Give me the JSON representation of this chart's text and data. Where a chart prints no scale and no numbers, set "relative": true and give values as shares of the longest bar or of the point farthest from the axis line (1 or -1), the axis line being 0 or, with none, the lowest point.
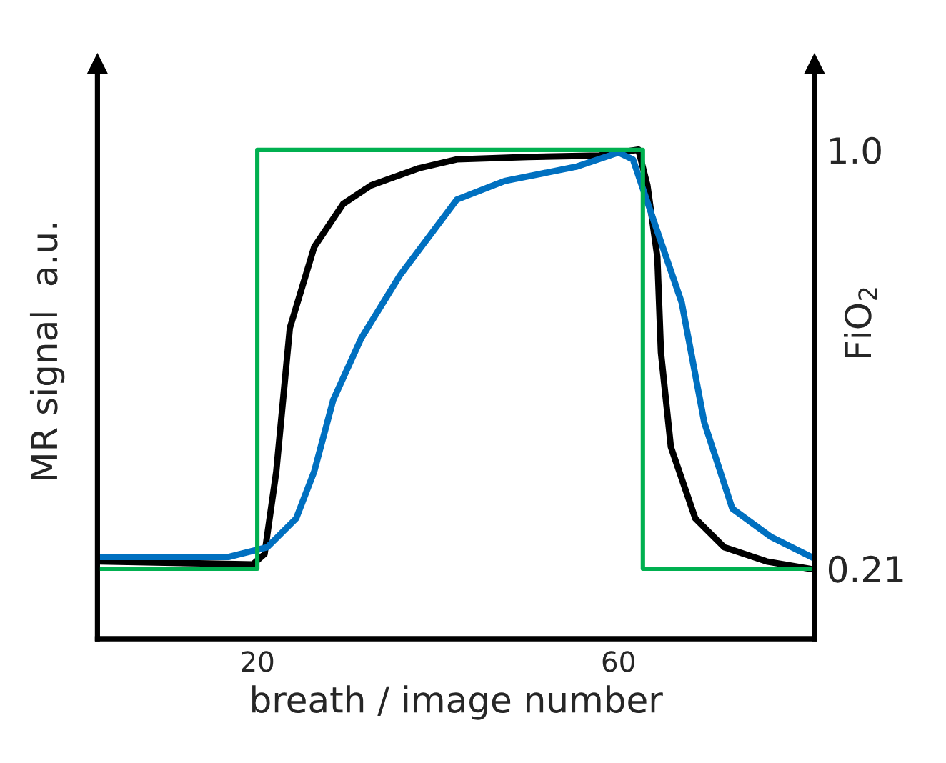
{
  "chart_data": {
    "type": "line",
    "xlabel": "breath / image number",
    "ylabel": "MR signal  a.u.",
    "y2label": "FiO$_{2}$",
    "relative": true,
    "xlim": [
      2.3,
      81.7
    ],
    "xticks": [
      20,
      60
    ],
    "y2lim": [
      0.078,
      1.162
    ],
    "y2ticks": [
      {
        "value": 1.0,
        "label": "1.0"
      },
      0.21
    ],
    "series": [
      {
        "color": "#00b050",
        "axis": "y2",
        "x": [
          2.3,
          20,
          20,
          62.7,
          62.7,
          81.7
        ],
        "values": [
          0.21,
          0.21,
          1.0,
          1.0,
          0.21,
          0.21
        ]
      },
      {
        "color": "#000000",
        "x": [
          2.6,
          19.5,
          20.8,
          22.1,
          23.6,
          26.3,
          29.5,
          32.6,
          37.9,
          42.1,
          50.0,
          57.9,
          62.2,
          63.2,
          64.3,
          64.7,
          65.8,
          68.5,
          71.7,
          76.4,
          81.2
        ],
        "values": [
          0.158,
          0.152,
          0.173,
          0.342,
          0.635,
          0.801,
          0.889,
          0.927,
          0.962,
          0.98,
          0.985,
          0.988,
          1.0,
          0.927,
          0.781,
          0.585,
          0.392,
          0.246,
          0.187,
          0.158,
          0.143
        ]
      },
      {
        "color": "#0070c0",
        "x": [
          2.6,
          16.8,
          21.1,
          24.3,
          26.3,
          28.4,
          31.5,
          35.8,
          42.1,
          47.4,
          55.3,
          60.0,
          61.6,
          64.3,
          67.0,
          69.5,
          72.6,
          76.9,
          81.7
        ],
        "values": [
          0.167,
          0.167,
          0.187,
          0.246,
          0.342,
          0.488,
          0.614,
          0.743,
          0.898,
          0.936,
          0.965,
          0.994,
          0.98,
          0.833,
          0.687,
          0.442,
          0.266,
          0.208,
          0.164
        ]
      }
    ]
  }
}
